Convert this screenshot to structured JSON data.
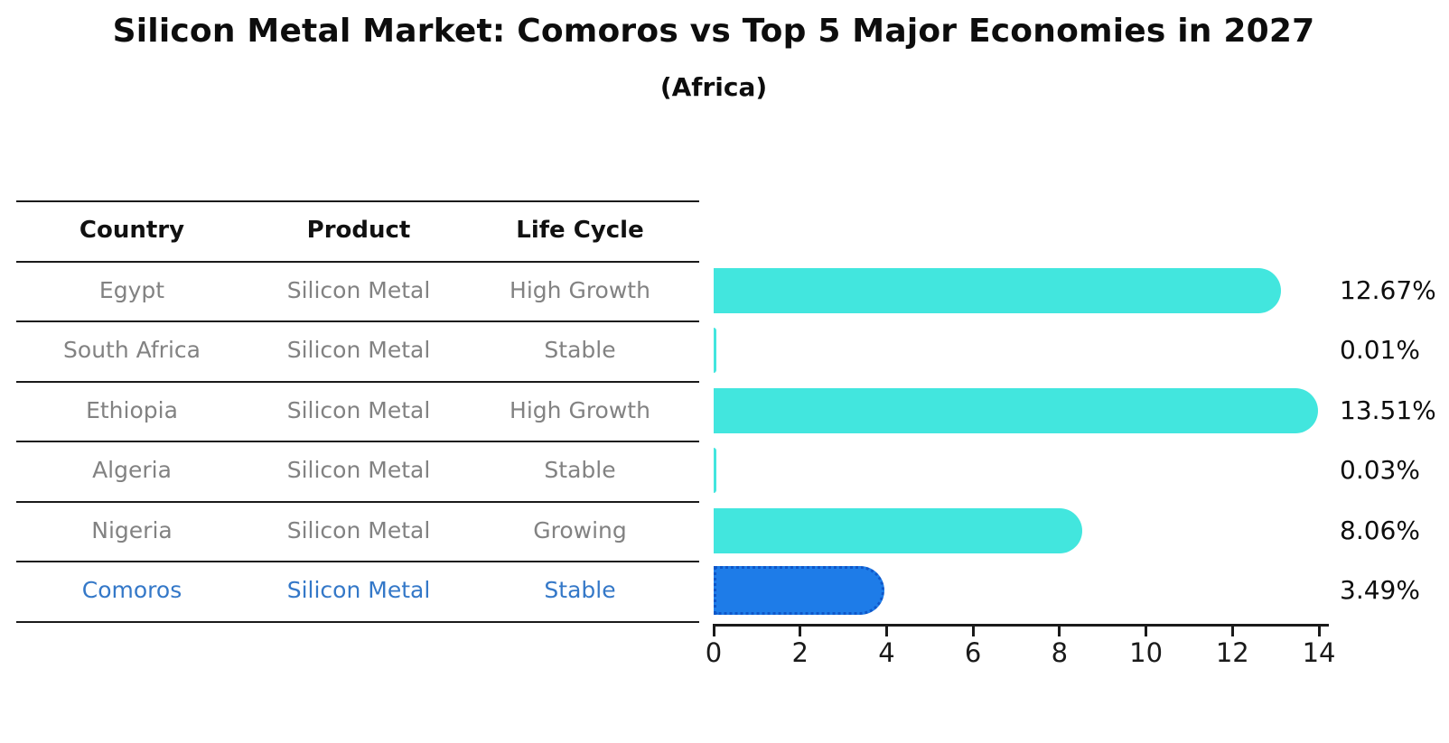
{
  "title": "Silicon Metal Market: Comoros vs Top 5 Major Economies in 2027",
  "subtitle": "(Africa)",
  "table": {
    "headers": [
      "Country",
      "Product",
      "Life Cycle"
    ],
    "rows": [
      {
        "country": "Egypt",
        "product": "Silicon Metal",
        "life_cycle": "High Growth",
        "highlight": false
      },
      {
        "country": "South Africa",
        "product": "Silicon Metal",
        "life_cycle": "Stable",
        "highlight": false
      },
      {
        "country": "Ethiopia",
        "product": "Silicon Metal",
        "life_cycle": "High Growth",
        "highlight": false
      },
      {
        "country": "Algeria",
        "product": "Silicon Metal",
        "life_cycle": "Stable",
        "highlight": false
      },
      {
        "country": "Nigeria",
        "product": "Silicon Metal",
        "life_cycle": "Growing",
        "highlight": false
      },
      {
        "country": "Comoros",
        "product": "Silicon Metal",
        "life_cycle": "Stable",
        "highlight": true
      }
    ]
  },
  "chart_data": {
    "type": "bar",
    "orientation": "horizontal",
    "title": "Silicon Metal Market: Comoros vs Top 5 Major Economies in 2027",
    "subtitle": "(Africa)",
    "categories": [
      "Egypt",
      "South Africa",
      "Ethiopia",
      "Algeria",
      "Nigeria",
      "Comoros"
    ],
    "values": [
      12.67,
      0.01,
      13.51,
      0.03,
      8.06,
      3.49
    ],
    "value_labels": [
      "12.67%",
      "0.01%",
      "13.51%",
      "0.03%",
      "8.06%",
      "3.49%"
    ],
    "xlim": [
      0,
      14
    ],
    "xticks": [
      0,
      2,
      4,
      6,
      8,
      10,
      12,
      14
    ],
    "grid": false,
    "legend": false,
    "highlight_index": 5,
    "colors": {
      "bar": "#42E6DE",
      "highlight_bar": "#1E7CE8",
      "highlight_border": "#0F57C9",
      "highlight_text": "#3478C8",
      "row_text": "#828282",
      "axis": "#1a1a1a"
    }
  }
}
